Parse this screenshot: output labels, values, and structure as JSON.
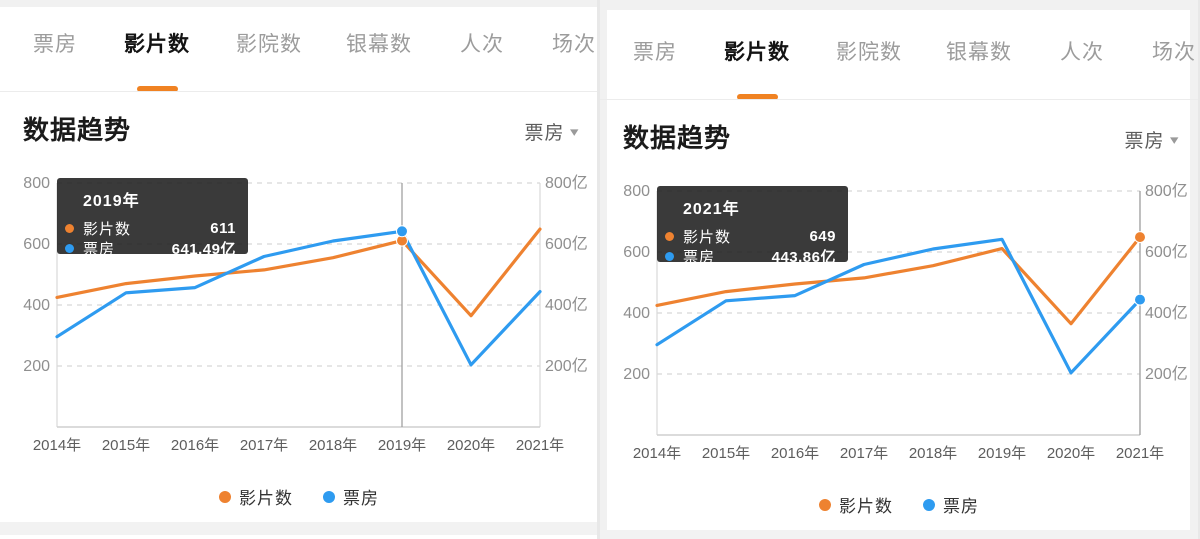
{
  "colors": {
    "accent_orange": "#f08222",
    "series_orange": "#ee8230",
    "series_blue": "#2e9bf0",
    "tooltip_bg": "rgba(26,26,26,0.86)",
    "indicator_gray": "#9a9a9a"
  },
  "tabs": [
    {
      "label": "票房",
      "selected": false
    },
    {
      "label": "影片数",
      "selected": true
    },
    {
      "label": "影院数",
      "selected": false
    },
    {
      "label": "银幕数",
      "selected": false
    },
    {
      "label": "人次",
      "selected": false
    },
    {
      "label": "场次",
      "selected": false
    }
  ],
  "panels": [
    {
      "section_title": "数据趋势",
      "dropdown_label": "票房",
      "tooltip": {
        "title": "2019年",
        "rows": [
          {
            "label": "影片数",
            "value": "611"
          },
          {
            "label": "票房",
            "value": "641.49亿"
          }
        ]
      },
      "legend": [
        {
          "label": "影片数"
        },
        {
          "label": "票房"
        }
      ]
    },
    {
      "section_title": "数据趋势",
      "dropdown_label": "票房",
      "tooltip": {
        "title": "2021年",
        "rows": [
          {
            "label": "影片数",
            "value": "649"
          },
          {
            "label": "票房",
            "value": "443.86亿"
          }
        ]
      },
      "legend": [
        {
          "label": "影片数"
        },
        {
          "label": "票房"
        }
      ]
    }
  ],
  "chart_data": [
    {
      "type": "line",
      "title": "数据趋势",
      "x": [
        "2014年",
        "2015年",
        "2016年",
        "2017年",
        "2018年",
        "2019年",
        "2020年",
        "2021年"
      ],
      "ylim": [
        0,
        800
      ],
      "yticks": [
        800,
        600,
        400,
        200
      ],
      "y2_suffix": "亿",
      "grid": true,
      "legend_position": "bottom",
      "highlight_x": "2019年",
      "highlight_index": 5,
      "series": [
        {
          "name": "影片数",
          "color": "#ee8230",
          "axis": "left",
          "values": [
            425,
            470,
            495,
            515,
            555,
            611,
            365,
            649
          ]
        },
        {
          "name": "票房",
          "color": "#2e9bf0",
          "axis": "right",
          "values": [
            296,
            440,
            457,
            559,
            610,
            641.49,
            204,
            443.86
          ]
        }
      ]
    },
    {
      "type": "line",
      "title": "数据趋势",
      "x": [
        "2014年",
        "2015年",
        "2016年",
        "2017年",
        "2018年",
        "2019年",
        "2020年",
        "2021年"
      ],
      "ylim": [
        0,
        800
      ],
      "yticks": [
        800,
        600,
        400,
        200
      ],
      "y2_suffix": "亿",
      "grid": true,
      "legend_position": "bottom",
      "highlight_x": "2021年",
      "highlight_index": 7,
      "series": [
        {
          "name": "影片数",
          "color": "#ee8230",
          "axis": "left",
          "values": [
            425,
            470,
            495,
            515,
            555,
            611,
            365,
            649
          ]
        },
        {
          "name": "票房",
          "color": "#2e9bf0",
          "axis": "right",
          "values": [
            296,
            440,
            457,
            559,
            610,
            641.49,
            204,
            443.86
          ]
        }
      ]
    }
  ]
}
